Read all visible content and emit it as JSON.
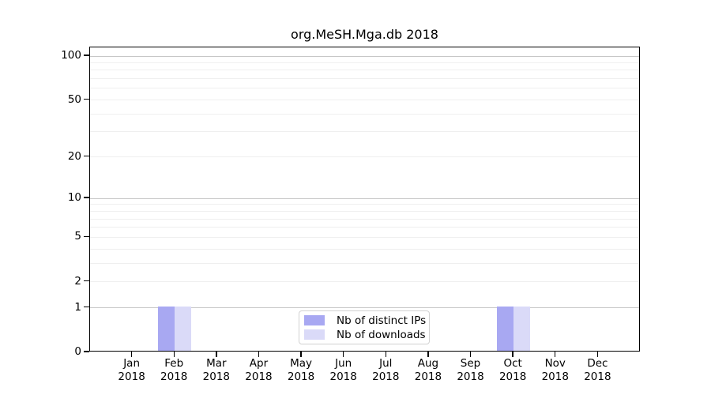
{
  "chart_data": {
    "type": "bar",
    "title": "org.MeSH.Mga.db 2018",
    "x_year": "2018",
    "categories": [
      "Jan",
      "Feb",
      "Mar",
      "Apr",
      "May",
      "Jun",
      "Jul",
      "Aug",
      "Sep",
      "Oct",
      "Nov",
      "Dec"
    ],
    "series": [
      {
        "name": "Nb of distinct IPs",
        "color": "#a8a8f2",
        "values": [
          0,
          1,
          0,
          0,
          0,
          0,
          0,
          0,
          0,
          1,
          0,
          0
        ]
      },
      {
        "name": "Nb of downloads",
        "color": "#dadaf8",
        "values": [
          0,
          1,
          0,
          0,
          0,
          0,
          0,
          0,
          0,
          1,
          0,
          0
        ]
      }
    ],
    "y_scale": "log1p",
    "ylim": [
      0,
      100
    ],
    "y_ticks": [
      0,
      1,
      2,
      5,
      10,
      20,
      50,
      100
    ],
    "y_gridlines": [
      1,
      2,
      3,
      4,
      5,
      6,
      7,
      8,
      9,
      10,
      20,
      30,
      40,
      50,
      60,
      70,
      80,
      90,
      100
    ],
    "y_major_gridlines": [
      1,
      10,
      100
    ],
    "grid": "horizontal",
    "legend_position": "bottom-center",
    "colors": {
      "axis": "#000000",
      "major_grid": "#c7c7c7",
      "minor_grid": "#efefef",
      "legend_border": "#d2d2d2"
    }
  }
}
